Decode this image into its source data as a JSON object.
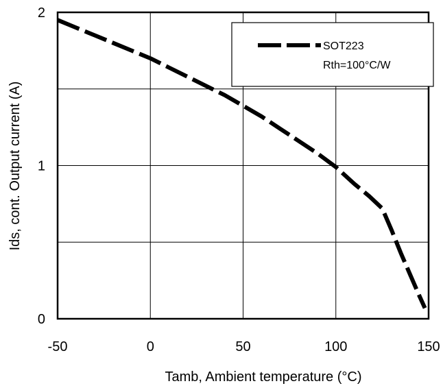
{
  "chart_data": {
    "type": "line",
    "title": "",
    "xlabel": "Tamb, Ambient temperature (°C)",
    "ylabel": "Ids, cont. Output current (A)",
    "xlim": [
      -50,
      150
    ],
    "ylim": [
      0,
      2
    ],
    "xticks": [
      -50,
      0,
      50,
      100,
      150
    ],
    "xtick_labels": [
      "-50",
      "0",
      "50",
      "100",
      "150"
    ],
    "yticks": [
      0,
      1,
      2
    ],
    "ytick_labels": [
      "0",
      "1",
      "2"
    ],
    "minor_y_gridlines": [
      0.5,
      1.5
    ],
    "grid": true,
    "legend_position": "top-right",
    "legend_lines": [
      "SOT223",
      "Rth=100°C/W"
    ],
    "series": [
      {
        "name": "SOT223",
        "line_style": "dashed",
        "color": "#000000",
        "x": [
          -50,
          -40,
          -30,
          -20,
          -10,
          0,
          10,
          20,
          30,
          40,
          50,
          60,
          70,
          80,
          90,
          100,
          110,
          118,
          125,
          130,
          135,
          140,
          145,
          148
        ],
        "y": [
          1.95,
          1.9,
          1.85,
          1.8,
          1.75,
          1.7,
          1.64,
          1.58,
          1.52,
          1.46,
          1.39,
          1.32,
          1.24,
          1.16,
          1.08,
          0.99,
          0.88,
          0.8,
          0.72,
          0.58,
          0.43,
          0.29,
          0.15,
          0.07
        ]
      }
    ]
  }
}
